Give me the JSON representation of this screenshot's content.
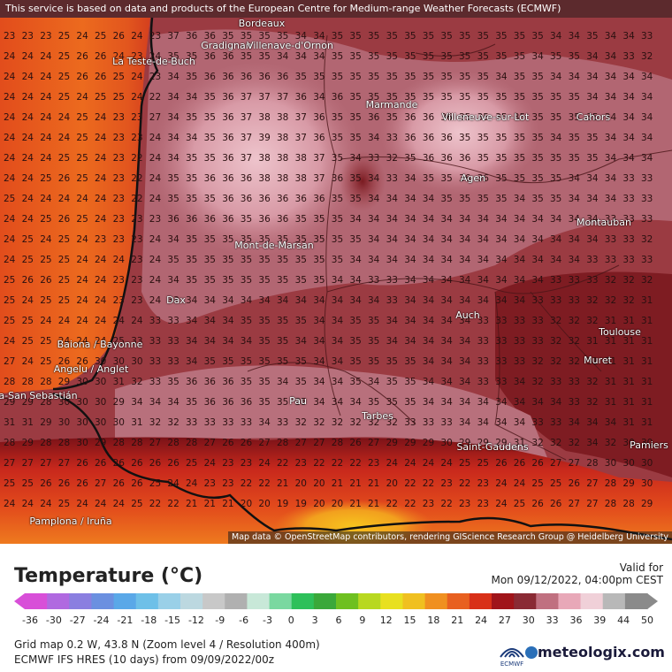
{
  "header": {
    "disclaimer": "This service is based on data and products of the European Centre for Medium-range Weather Forecasts (ECMWF)"
  },
  "map": {
    "attribution": "Map data © OpenStreetMap contributors, rendering GIScience Research Group @ Heidelberg University",
    "colors": {
      "sea_warm": "#e8621e",
      "sea_mid": "#d9451f",
      "land_hot": "#9b3b42",
      "land_pink": "#c98a96",
      "land_light": "#e2b8c0",
      "south_hot": "#7a1218",
      "south_mountain": "#e24a1c",
      "south_peak": "#f2a81e"
    },
    "cities": [
      {
        "name": "Bordeaux"
      },
      {
        "name": "Gradignan"
      },
      {
        "name": "Villenave-d'Ornon"
      },
      {
        "name": "La Teste-de-Buch"
      },
      {
        "name": "Marmande"
      },
      {
        "name": "Villeneuve-sur-Lot"
      },
      {
        "name": "Cahors"
      },
      {
        "name": "Agen"
      },
      {
        "name": "Montauban"
      },
      {
        "name": "Mont-de-Marsan"
      },
      {
        "name": "Dax"
      },
      {
        "name": "Auch"
      },
      {
        "name": "Toulouse"
      },
      {
        "name": "Baiona / Bayonne"
      },
      {
        "name": "Angelu / Anglet"
      },
      {
        "name": "Muret"
      },
      {
        "name": "Donostia-San Sebastián"
      },
      {
        "name": "Pau"
      },
      {
        "name": "Tarbes"
      },
      {
        "name": "Saint-Gaudens"
      },
      {
        "name": "Pamiers"
      },
      {
        "name": "Pamplona / Iruña"
      }
    ],
    "grid_rows": [
      "23 23 23 25 24 25 26 24 23 37 36 36 35 35 35 35 34 34 35 35 35 35 35 35 35 35 35 35 35 35 34 34 35 34 34 33",
      "24 24 24 25 26 26 24 23 24 35 35 36 36 35 35 34 34 34 35 35 35 35 35 35 35 35 35 35 35 34 35 35 34 34 33 32",
      "24 24 24 25 26 26 25 24 23 34 35 36 36 36 36 36 35 35 35 35 35 35 35 35 35 35 35 34 35 35 34 34 34 34 34 34",
      "24 24 24 25 24 25 25 24 22 34 34 35 36 37 37 37 36 34 36 35 35 35 35 35 35 35 35 35 35 35 35 35 34 34 34 34",
      "24 24 24 24 25 24 23 23 27 34 35 35 36 37 38 38 37 36 35 35 36 35 36 36 36 35 35 35 35 35 35 35 35 34 34 34",
      "24 24 24 24 25 24 23 23 24 34 34 35 36 37 39 38 37 36 35 35 34 33 36 36 36 35 35 35 35 35 34 35 35 34 34 34",
      "24 24 24 25 25 24 23 22 24 34 35 35 36 37 38 38 38 37 35 34 33 32 35 36 36 36 35 35 35 35 35 35 35 34 34 34",
      "24 24 25 26 25 24 23 22 24 35 35 36 36 36 38 38 38 37 36 35 34 33 34 35 35 36 36 35 35 35 35 34 34 34 33 33",
      "25 24 24 24 24 24 23 22 24 35 35 35 36 36 36 36 36 36 35 35 34 34 34 34 35 35 35 35 34 35 35 34 34 34 33 33",
      "24 24 25 26 25 24 23 23 23 36 36 36 36 35 36 36 35 35 35 34 34 34 34 34 34 34 34 34 34 34 34 34 34 33 33 33",
      "24 25 24 25 24 23 23 23 24 34 35 35 35 35 35 35 35 35 35 35 34 34 34 34 34 34 34 34 34 34 34 34 34 33 33 32",
      "24 25 25 25 24 24 24 23 24 35 35 35 35 35 35 35 35 35 35 34 34 34 34 34 34 34 34 34 34 34 34 34 33 33 33 33",
      "25 26 26 25 24 24 23 23 24 34 35 35 35 35 35 35 35 35 34 34 33 33 34 34 34 34 34 34 34 34 33 33 33 32 32 32",
      "25 24 25 25 24 24 23 23 24 33 34 34 34 34 34 34 34 34 34 34 34 33 34 34 34 34 34 34 34 33 33 33 32 32 32 31",
      "25 25 24 24 24 24 24 24 33 33 34 34 34 35 35 35 35 34 34 35 35 34 34 34 34 34 33 33 33 33 32 32 32 31 31 31",
      "24 25 25 24 24 24 25 33 33 33 34 34 34 34 35 35 34 34 34 35 35 34 34 34 34 34 33 33 33 33 32 32 31 31 31 31",
      "27 24 25 26 26 30 30 30 33 33 34 35 35 35 35 35 35 34 34 35 35 35 35 34 34 34 33 33 33 32 32 32 31 31 31 31",
      "28 28 28 29 30 30 31 32 33 35 36 36 36 35 35 34 35 34 34 35 34 35 35 34 34 34 33 33 34 32 33 33 32 31 31 31",
      "29 29 28 30 30 30 29 34 34 34 35 36 36 36 35 35 35 34 34 34 35 35 35 34 34 34 34 34 34 34 34 33 32 31 31 31",
      "31 31 29 30 30 30 30 31 32 32 33 33 33 33 34 33 32 32 32 32 32 32 33 33 33 34 34 34 34 33 33 34 34 34 31 31",
      "28 29 28 28 30 29 28 28 27 28 28 27 26 26 27 28 27 27 28 26 27 29 29 29 30 29 29 29 31 32 32 32 34 32 30 30",
      "27 27 27 27 26 26 26 26 26 26 25 24 23 23 24 22 23 22 22 22 23 24 24 24 24 25 25 26 26 26 27 27 28 30 30 30",
      "25 25 26 26 26 27 26 26 25 24 24 23 23 22 22 21 20 20 21 21 21 20 22 22 23 22 23 24 24 25 25 26 27 28 29 30",
      "24 24 24 25 24 24 24 25 22 22 21 21 21 20 20 19 19 20 20 21 21 22 22 23 22 23 23 24 25 26 26 27 27 28 28 29"
    ]
  },
  "legend": {
    "title": "Temperature (°C)",
    "valid_label": "Valid for",
    "valid_value": "Mon 09/12/2022, 04:00pm CEST",
    "ticks": [
      "-36",
      "-30",
      "-27",
      "-24",
      "-21",
      "-18",
      "-15",
      "-12",
      "-9",
      "-6",
      "-3",
      "0",
      "3",
      "6",
      "9",
      "12",
      "15",
      "18",
      "21",
      "24",
      "27",
      "30",
      "33",
      "36",
      "39",
      "44",
      "50"
    ],
    "gradient_stops": [
      "#d84fd8",
      "#b069e0",
      "#8a7fe0",
      "#6b90e0",
      "#5aa8e8",
      "#6ec0e8",
      "#9ad0e8",
      "#bcd8e0",
      "#c8c8c8",
      "#b0b0b0",
      "#c8e8d8",
      "#7ad8a0",
      "#2ec05a",
      "#3aa83a",
      "#6ec020",
      "#b8d820",
      "#e8e020",
      "#f0c020",
      "#f09020",
      "#e86020",
      "#d83018",
      "#a0141a",
      "#8a2a34",
      "#c07080",
      "#e8a8b8",
      "#f0d0d8",
      "#b8b8b8",
      "#8a8a8a"
    ],
    "info_line1": "Grid map 0.2 W, 43.8 N (Zoom level 4 / Resolution 400m)",
    "info_line2": "ECMWF IFS HRES (10 days) from 09/09/2022/00z",
    "ecmwf_label": "ECMWF",
    "brand": "meteologix.com"
  }
}
